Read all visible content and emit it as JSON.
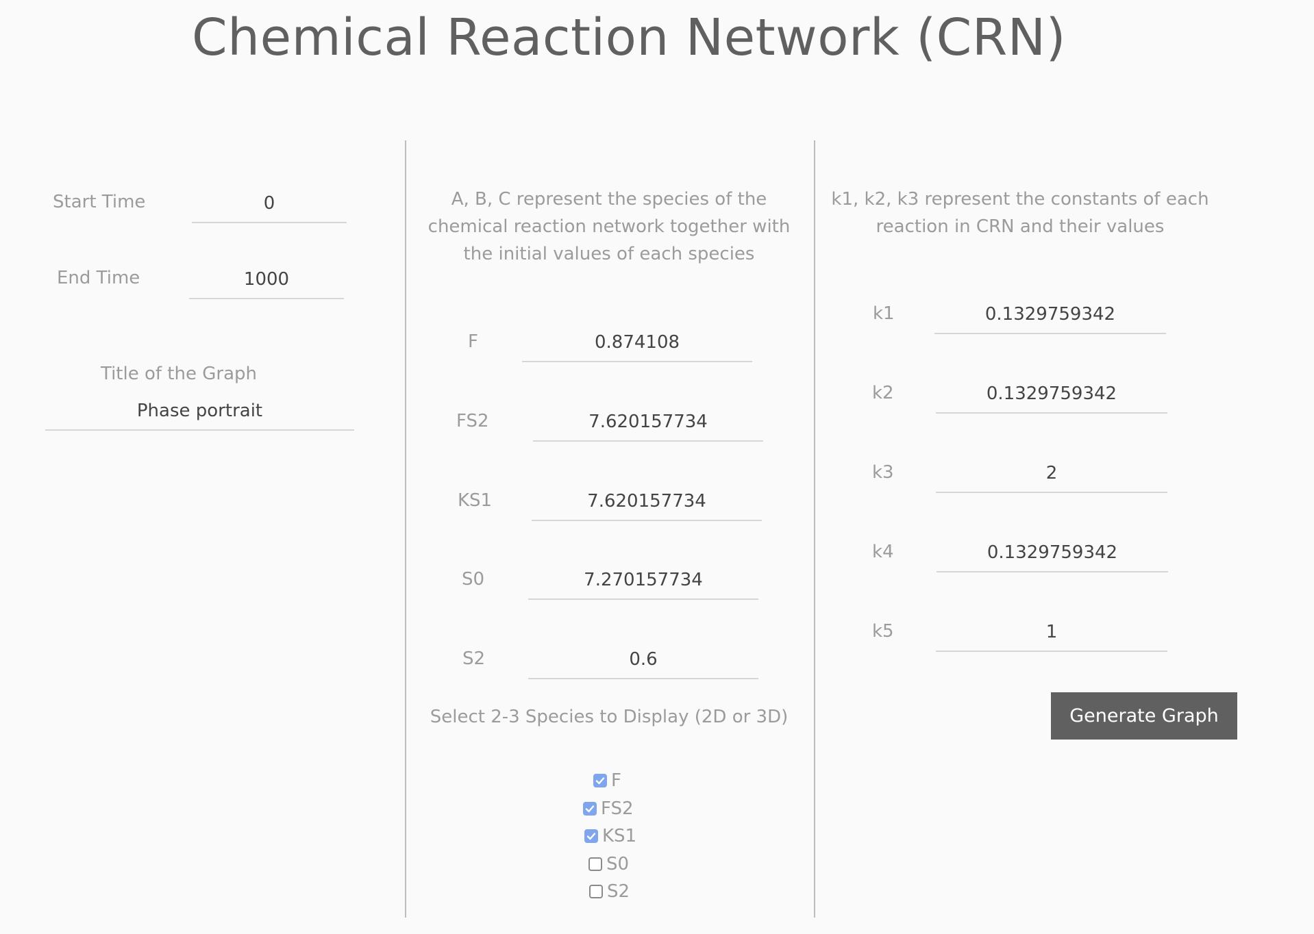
{
  "header": {
    "title": "Chemical Reaction Network (CRN)"
  },
  "time_panel": {
    "start_time": {
      "label": "Start Time",
      "value": "0"
    },
    "end_time": {
      "label": "End Time",
      "value": "1000"
    },
    "graph_title": {
      "label": "Title of the Graph",
      "value": "Phase portrait"
    }
  },
  "species_panel": {
    "description": "A, B, C represent the species of the chemical reaction network together with the initial values of each species",
    "species": [
      {
        "label": "F",
        "value": "0.874108"
      },
      {
        "label": "FS2",
        "value": "7.620157734"
      },
      {
        "label": "KS1",
        "value": "7.620157734"
      },
      {
        "label": "S0",
        "value": "7.270157734"
      },
      {
        "label": "S2",
        "value": "0.6"
      }
    ],
    "select_label": "Select 2-3 Species to Display (2D or 3D)",
    "checkboxes": [
      {
        "label": "F",
        "checked": true
      },
      {
        "label": "FS2",
        "checked": true
      },
      {
        "label": "KS1",
        "checked": true
      },
      {
        "label": "S0",
        "checked": false
      },
      {
        "label": "S2",
        "checked": false
      }
    ]
  },
  "constants_panel": {
    "description": "k1, k2, k3 represent the constants of each reaction in CRN and their values",
    "constants": [
      {
        "label": "k1",
        "value": "0.1329759342"
      },
      {
        "label": "k2",
        "value": "0.1329759342"
      },
      {
        "label": "k3",
        "value": "2"
      },
      {
        "label": "k4",
        "value": "0.1329759342"
      },
      {
        "label": "k5",
        "value": "1"
      }
    ]
  },
  "actions": {
    "generate_label": "Generate Graph"
  },
  "colors": {
    "checkbox_checked": "#7fa6ec",
    "button_bg": "#606060",
    "divider": "#bdbdbd"
  }
}
